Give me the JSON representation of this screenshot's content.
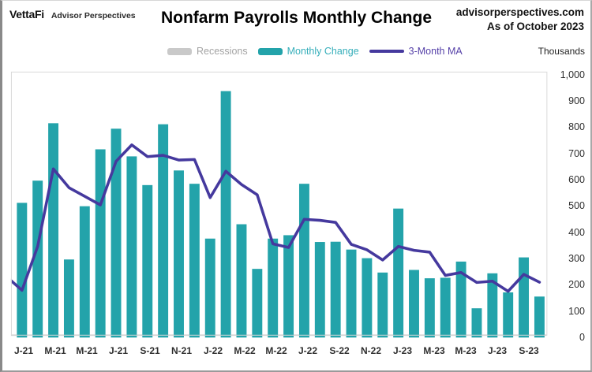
{
  "header": {
    "logo": "VettaFi",
    "logo_sub": "Advisor Perspectives",
    "title": "Nonfarm Payrolls Monthly Change",
    "site": "advisorperspectives.com",
    "as_of": "As of October 2023"
  },
  "axis": {
    "unit_label": "Thousands"
  },
  "legend": [
    {
      "label": "Recessions",
      "swatch_color": "#c9c9c9",
      "text_color": "#a3a3a3",
      "type": "bar"
    },
    {
      "label": "Monthly Change",
      "swatch_color": "#23a3aa",
      "text_color": "#35aeba",
      "type": "bar"
    },
    {
      "label": "3-Month MA",
      "swatch_color": "#45399e",
      "text_color": "#5540a8",
      "type": "line"
    }
  ],
  "chart_data": {
    "type": "bar",
    "title": "Nonfarm Payrolls Monthly Change",
    "subtitle": "As of October 2023",
    "ylabel": "Thousands",
    "xlabel": "",
    "ylim": [
      0,
      1000
    ],
    "y_tick_step": 100,
    "y_tick_labels": [
      "1,000",
      "900",
      "800",
      "700",
      "600",
      "500",
      "400",
      "300",
      "200",
      "100",
      "0"
    ],
    "gridlines": false,
    "legend_position": "top",
    "categories": [
      "Jan-21",
      "Feb-21",
      "Mar-21",
      "Apr-21",
      "May-21",
      "Jun-21",
      "Jul-21",
      "Aug-21",
      "Sep-21",
      "Oct-21",
      "Nov-21",
      "Dec-21",
      "Jan-22",
      "Feb-22",
      "Mar-22",
      "Apr-22",
      "May-22",
      "Jun-22",
      "Jul-22",
      "Aug-22",
      "Sep-22",
      "Oct-22",
      "Nov-22",
      "Dec-22",
      "Jan-23",
      "Feb-23",
      "Mar-23",
      "Apr-23",
      "May-23",
      "Jun-23",
      "Jul-23",
      "Aug-23",
      "Sep-23",
      "Oct-23"
    ],
    "x_tick_every": 2,
    "x_tick_labels": [
      "J-21",
      "M-21",
      "M-21",
      "J-21",
      "S-21",
      "N-21",
      "J-22",
      "M-22",
      "M-22",
      "J-22",
      "S-22",
      "N-22",
      "J-23",
      "M-23",
      "M-23",
      "J-23",
      "S-23"
    ],
    "series": [
      {
        "name": "Monthly Change",
        "type": "bar",
        "color": "#23a3aa",
        "values": [
          507,
          592,
          812,
          290,
          494,
          712,
          791,
          685,
          575,
          808,
          631,
          580,
          370,
          935,
          425,
          254,
          370,
          383,
          580,
          357,
          358,
          328,
          295,
          240,
          485,
          250,
          218,
          220,
          282,
          103,
          237,
          164,
          298,
          148
        ]
      },
      {
        "name": "3-Month MA",
        "type": "line",
        "color": "#45399e",
        "values": [
          172,
          340,
          637,
          565,
          532,
          499,
          666,
          729,
          684,
          689,
          671,
          673,
          527,
          628,
          577,
          538,
          350,
          336,
          444,
          440,
          432,
          348,
          327,
          288,
          340,
          325,
          318,
          229,
          240,
          202,
          207,
          168,
          233,
          203
        ],
        "lead_in_value": 225
      }
    ],
    "plot_colors": {
      "axis_line": "#bfbfbf",
      "plot_border": "#d9d9d9",
      "background": "#ffffff"
    }
  }
}
